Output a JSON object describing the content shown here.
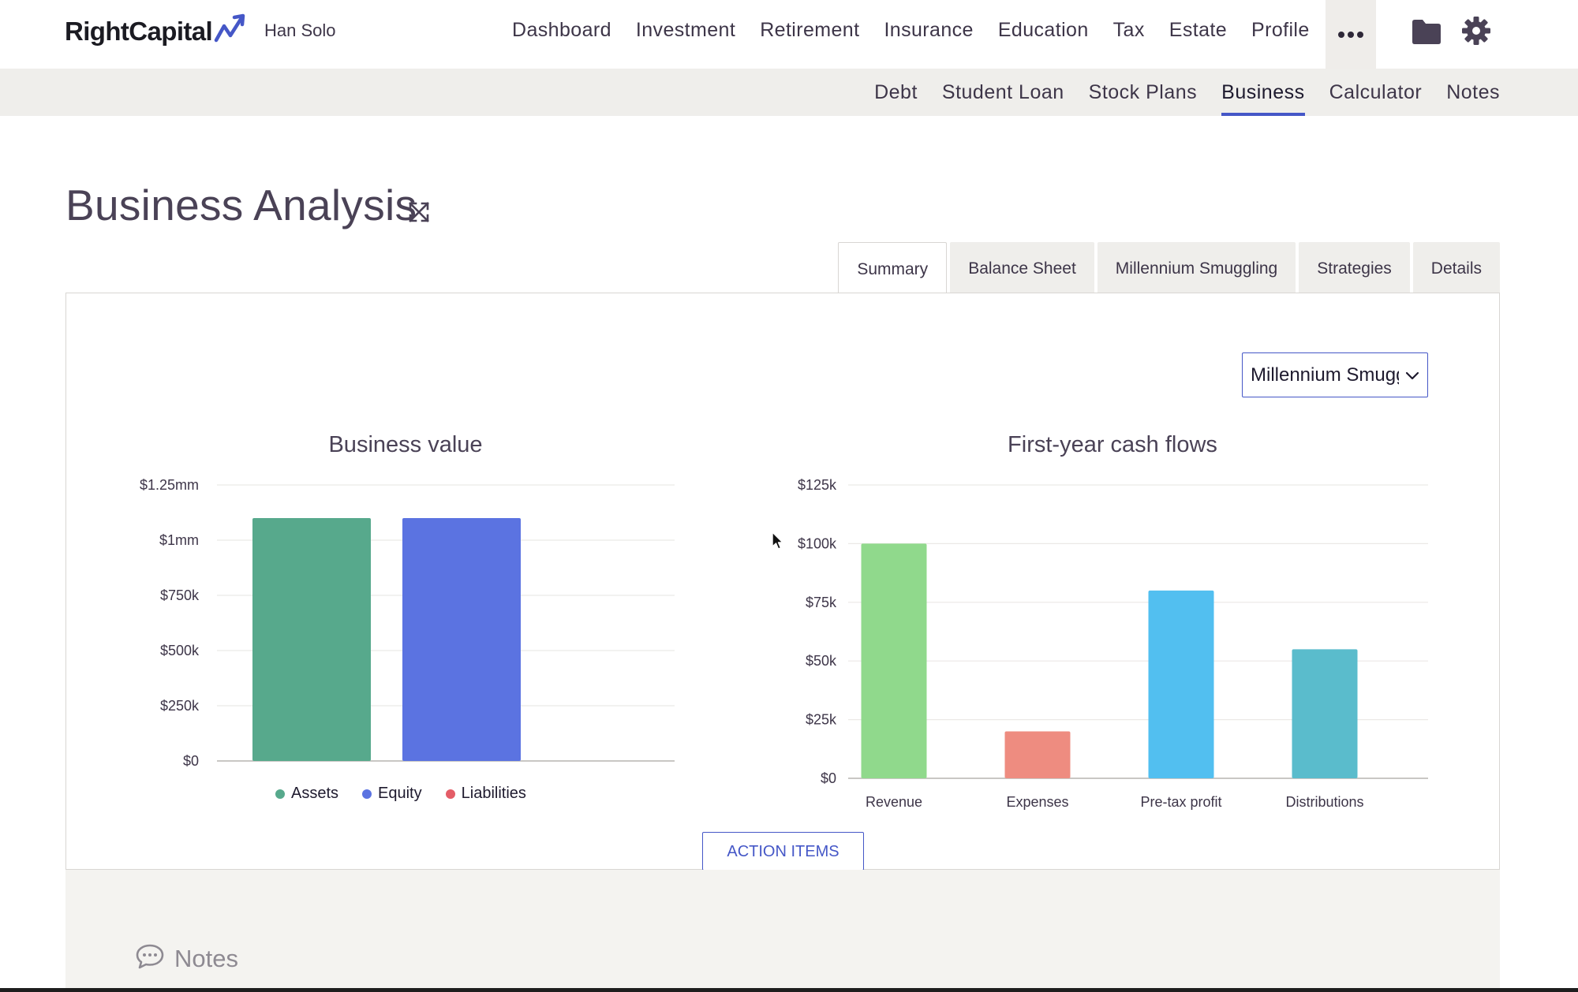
{
  "app": {
    "logo_text": "RightCapital",
    "client_name": "Han Solo"
  },
  "main_nav": [
    "Dashboard",
    "Investment",
    "Retirement",
    "Insurance",
    "Education",
    "Tax",
    "Estate",
    "Profile"
  ],
  "icons": {
    "more": "more-horizontal-icon",
    "folder": "folder-icon",
    "settings": "gear-icon",
    "expand": "expand-icon",
    "notes": "chat-bubble-icon"
  },
  "sub_nav": {
    "items": [
      "Debt",
      "Student Loan",
      "Stock Plans",
      "Business",
      "Calculator",
      "Notes"
    ],
    "active": "Business"
  },
  "page": {
    "title": "Business Analysis"
  },
  "tabs": {
    "items": [
      "Summary",
      "Balance Sheet",
      "Millennium Smuggling",
      "Strategies",
      "Details"
    ],
    "active": "Summary"
  },
  "entity_select": {
    "value": "Millennium Smuggling"
  },
  "colors": {
    "accent": "#4557c7",
    "assets": "#57a98c",
    "equity": "#5b73e1",
    "liabilities": "#e45d67",
    "revenue": "#90d98c",
    "expenses": "#ee8c80",
    "pretax_profit": "#52bff0",
    "distributions": "#5abccc"
  },
  "chart_data": [
    {
      "type": "bar",
      "title": "Business value",
      "categories": [
        "Assets",
        "Equity",
        "Liabilities"
      ],
      "values": [
        1100000,
        1100000,
        0
      ],
      "colors": [
        "#57a98c",
        "#5b73e1",
        "#e45d67"
      ],
      "ylim": [
        0,
        1250000
      ],
      "yticks": [
        0,
        250000,
        500000,
        750000,
        1000000,
        1250000
      ],
      "ytick_labels": [
        "$0",
        "$250k",
        "$500k",
        "$750k",
        "$1mm",
        "$1.25mm"
      ],
      "legend": [
        "Assets",
        "Equity",
        "Liabilities"
      ],
      "legend_position": "bottom",
      "grid": true
    },
    {
      "type": "bar",
      "title": "First-year cash flows",
      "categories": [
        "Revenue",
        "Expenses",
        "Pre-tax profit",
        "Distributions"
      ],
      "values": [
        100000,
        20000,
        80000,
        55000
      ],
      "colors": [
        "#90d98c",
        "#ee8c80",
        "#52bff0",
        "#5abccc"
      ],
      "ylim": [
        0,
        125000
      ],
      "yticks": [
        0,
        25000,
        50000,
        75000,
        100000,
        125000
      ],
      "ytick_labels": [
        "$0",
        "$25k",
        "$50k",
        "$75k",
        "$100k",
        "$125k"
      ],
      "grid": true
    }
  ],
  "action_button": {
    "label": "ACTION ITEMS"
  },
  "notes": {
    "label": "Notes"
  }
}
